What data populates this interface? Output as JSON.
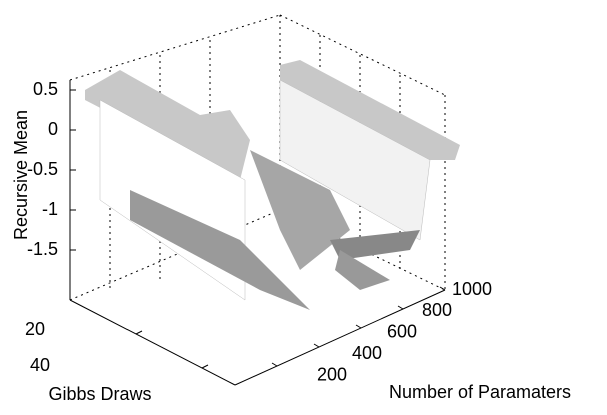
{
  "chart_data": {
    "type": "surface",
    "zlabel": "Recursive Mean",
    "ylabel": "Gibbs Draws",
    "xlabel": "Number of Paramaters",
    "zticks": [
      0.5,
      0,
      -0.5,
      -1,
      -1.5
    ],
    "yticks": [
      20,
      40
    ],
    "xticks": [
      200,
      400,
      600,
      800,
      1000
    ],
    "grid": true
  }
}
